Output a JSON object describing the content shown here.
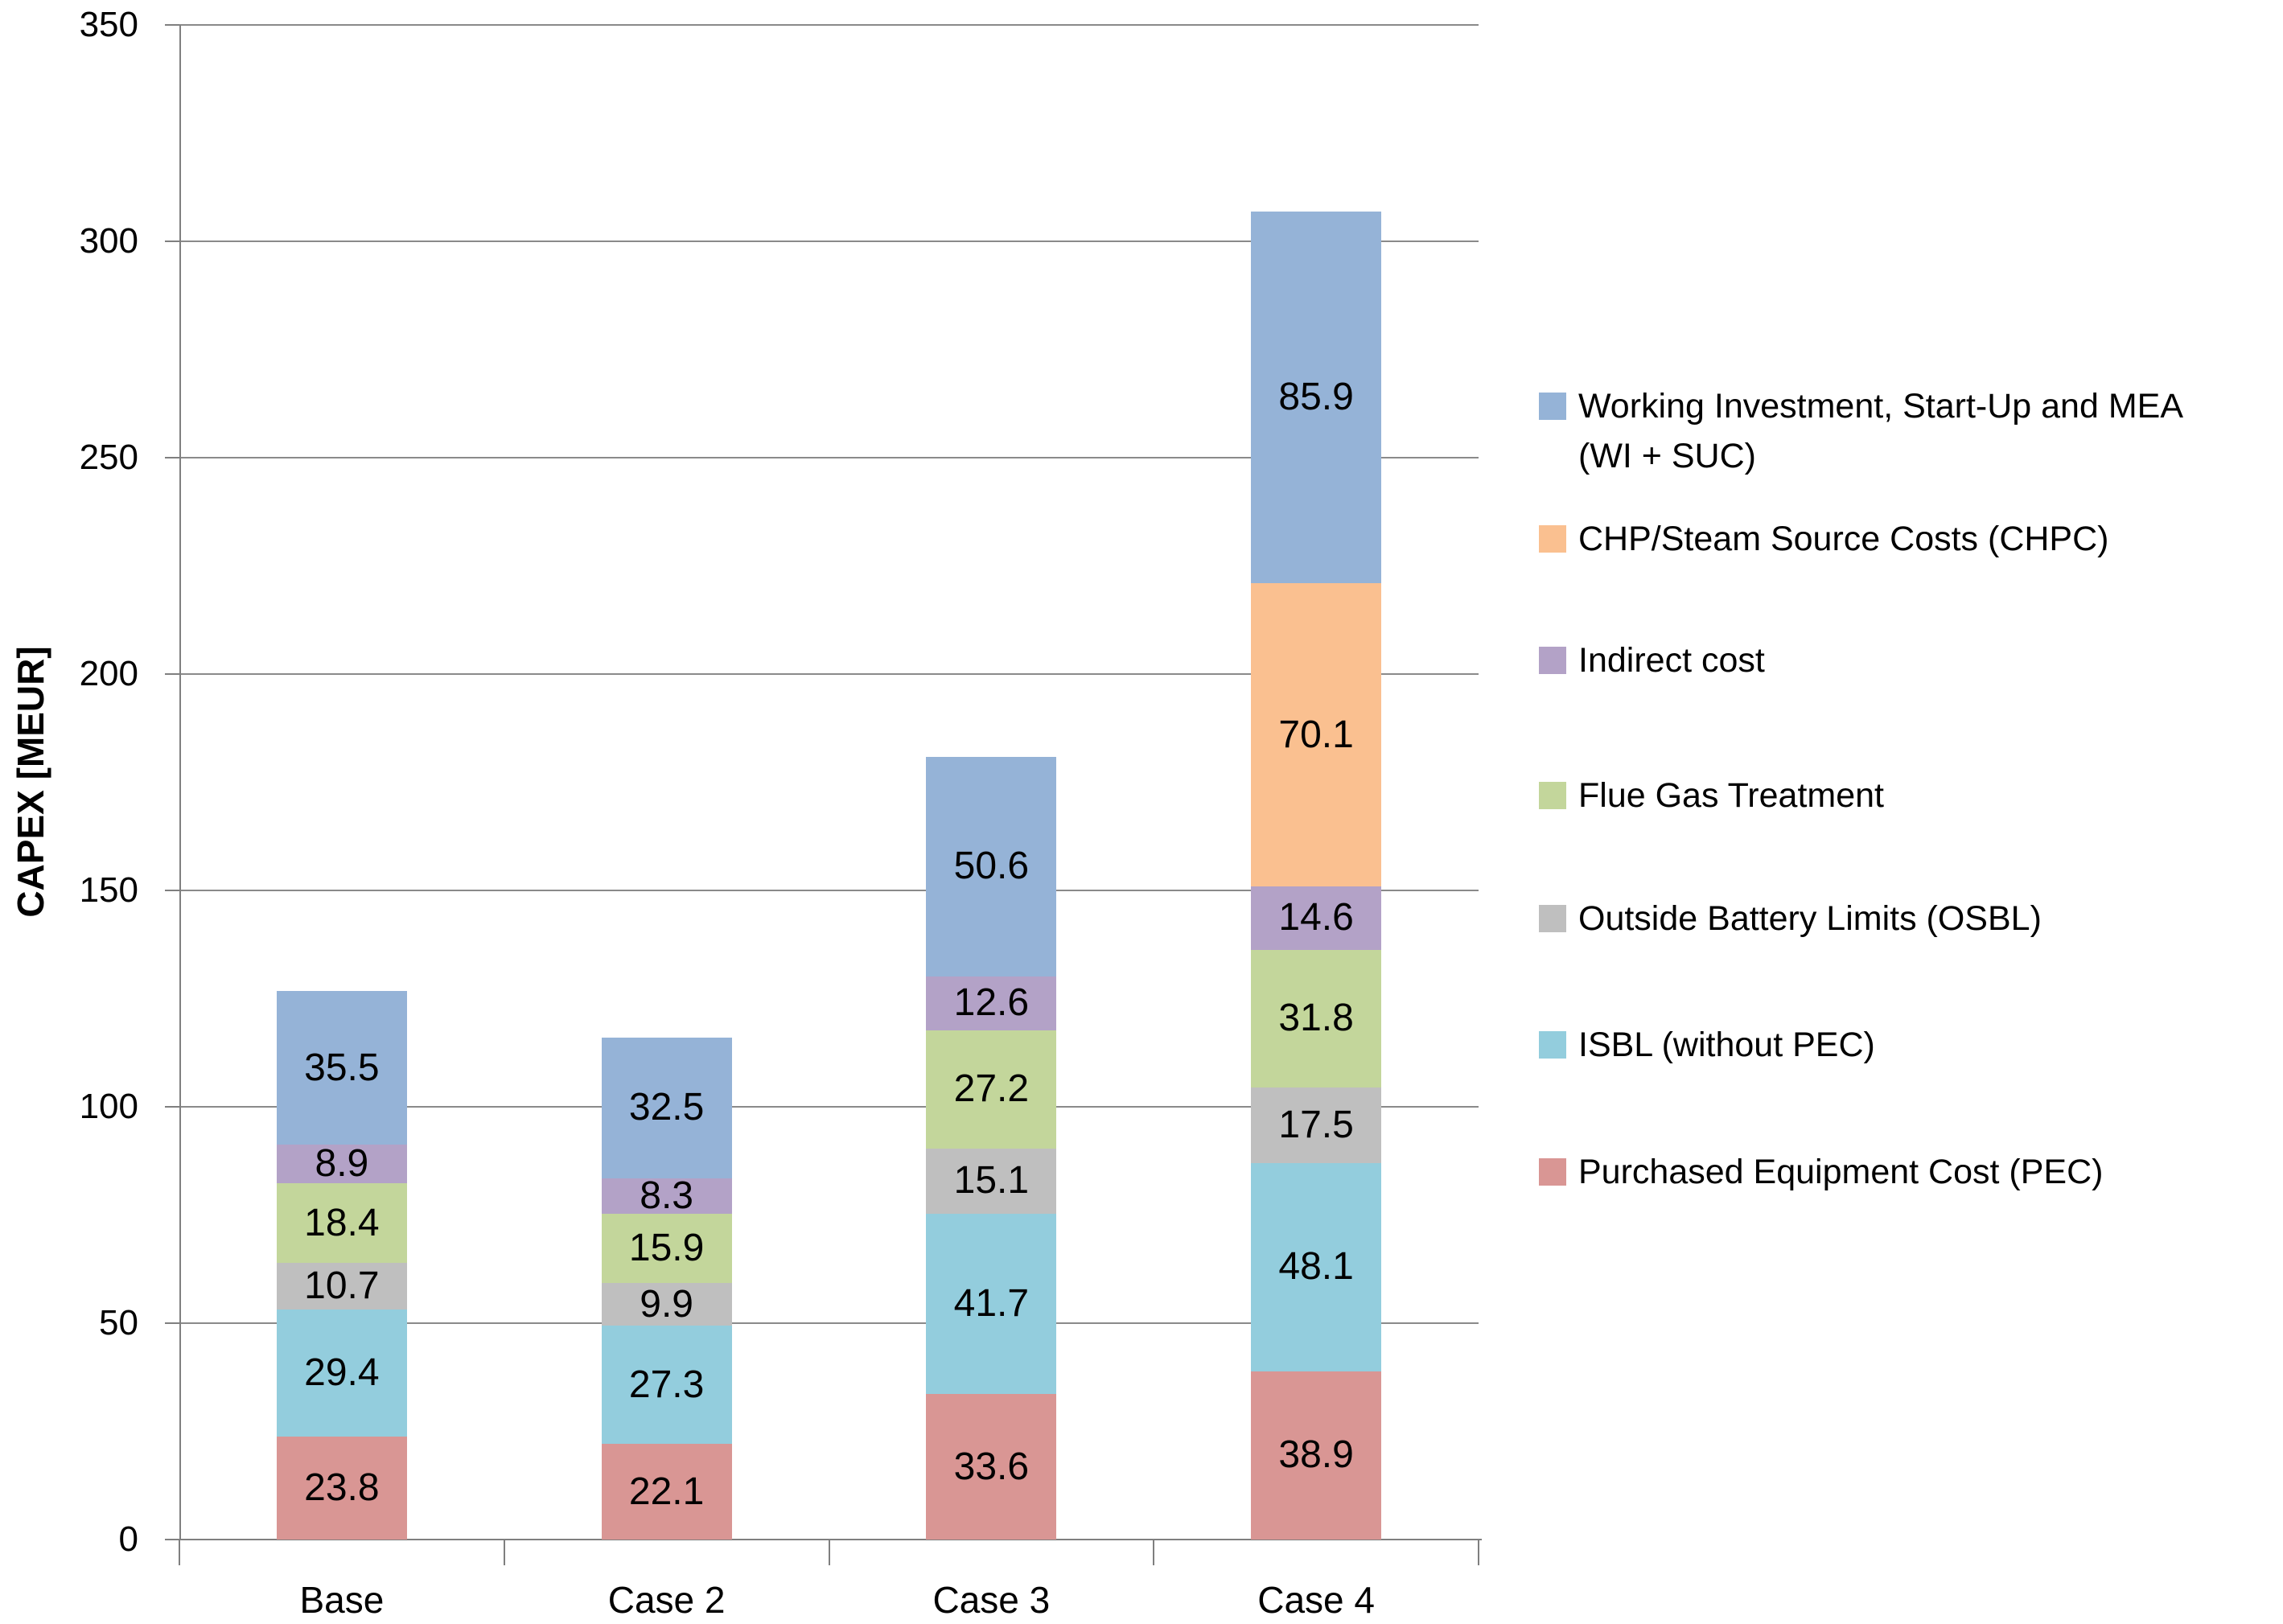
{
  "chart_data": {
    "type": "bar",
    "stacked": true,
    "title": "",
    "xlabel": "",
    "ylabel": "CAPEX [MEUR]",
    "ylim": [
      0,
      350
    ],
    "ytick_interval": 50,
    "ytick_labels": [
      "0",
      "50",
      "100",
      "150",
      "200",
      "250",
      "300",
      "350"
    ],
    "grid": true,
    "legend_position": "right",
    "categories": [
      "Base",
      "Case 2",
      "Case 3",
      "Case 4"
    ],
    "series": [
      {
        "name": "Purchased Equipment Cost (PEC)",
        "color": "#D99694",
        "values": [
          23.8,
          22.1,
          33.6,
          38.9
        ]
      },
      {
        "name": "ISBL (without PEC)",
        "color": "#93CDDD",
        "values": [
          29.4,
          27.3,
          41.7,
          48.1
        ]
      },
      {
        "name": "Outside Battery Limits (OSBL)",
        "color": "#BFBFBF",
        "values": [
          10.7,
          9.9,
          15.1,
          17.5
        ]
      },
      {
        "name": "Flue Gas Treatment",
        "color": "#C3D69B",
        "values": [
          18.4,
          15.9,
          27.2,
          31.8
        ]
      },
      {
        "name": "Indirect cost",
        "color": "#B3A2C7",
        "values": [
          8.9,
          8.3,
          12.6,
          14.6
        ]
      },
      {
        "name": "CHP/Steam Source Costs (CHPC)",
        "color": "#FAC090",
        "values": [
          0,
          0,
          0,
          70.1
        ]
      },
      {
        "name": "Working Investment, Start-Up and MEA (WI + SUC)",
        "color": "#95B3D7",
        "values": [
          35.5,
          32.5,
          50.6,
          85.9
        ]
      }
    ],
    "totals": [
      126.7,
      116.0,
      180.8,
      306.9
    ]
  },
  "legend": {
    "entries": [
      {
        "lines": [
          "Working Investment, Start-Up and MEA",
          "(WI + SUC)"
        ],
        "color": "#95B3D7"
      },
      {
        "lines": [
          "CHP/Steam Source Costs (CHPC)"
        ],
        "color": "#FAC090"
      },
      {
        "lines": [
          "Indirect cost"
        ],
        "color": "#B3A2C7"
      },
      {
        "lines": [
          "Flue Gas Treatment"
        ],
        "color": "#C3D69B"
      },
      {
        "lines": [
          "Outside Battery Limits (OSBL)"
        ],
        "color": "#BFBFBF"
      },
      {
        "lines": [
          "ISBL (without PEC)"
        ],
        "color": "#93CDDD"
      },
      {
        "lines": [
          "Purchased Equipment Cost (PEC)"
        ],
        "color": "#D99694"
      }
    ]
  }
}
